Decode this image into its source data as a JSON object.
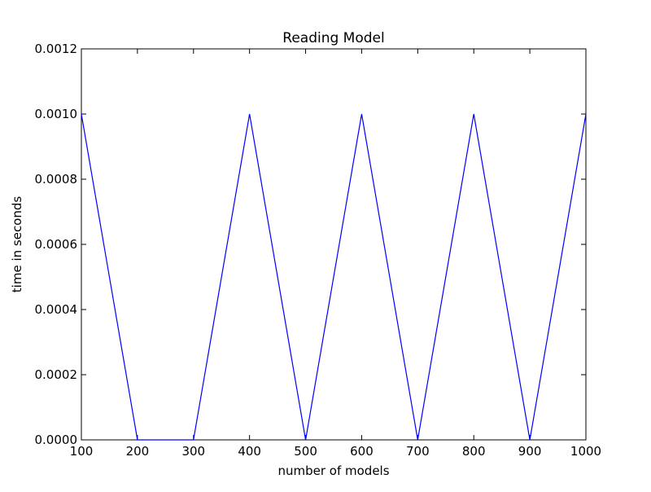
{
  "chart_data": {
    "type": "line",
    "title": "Reading Model",
    "xlabel": "number of models",
    "ylabel": "time in seconds",
    "xlim": [
      100,
      1000
    ],
    "ylim": [
      0,
      0.0012
    ],
    "xticks": [
      "100",
      "200",
      "300",
      "400",
      "500",
      "600",
      "700",
      "800",
      "900",
      "1000"
    ],
    "yticks": [
      "0.0000",
      "0.0002",
      "0.0004",
      "0.0006",
      "0.0008",
      "0.0010",
      "0.0012"
    ],
    "grid": false,
    "legend": false,
    "series": [
      {
        "color": "#0000ff",
        "x": [
          100,
          200,
          300,
          400,
          500,
          600,
          700,
          800,
          900,
          1000
        ],
        "values": [
          0.001,
          0.0,
          0.0,
          0.001,
          0.0,
          0.001,
          0.0,
          0.001,
          0.0,
          0.001
        ]
      }
    ]
  }
}
